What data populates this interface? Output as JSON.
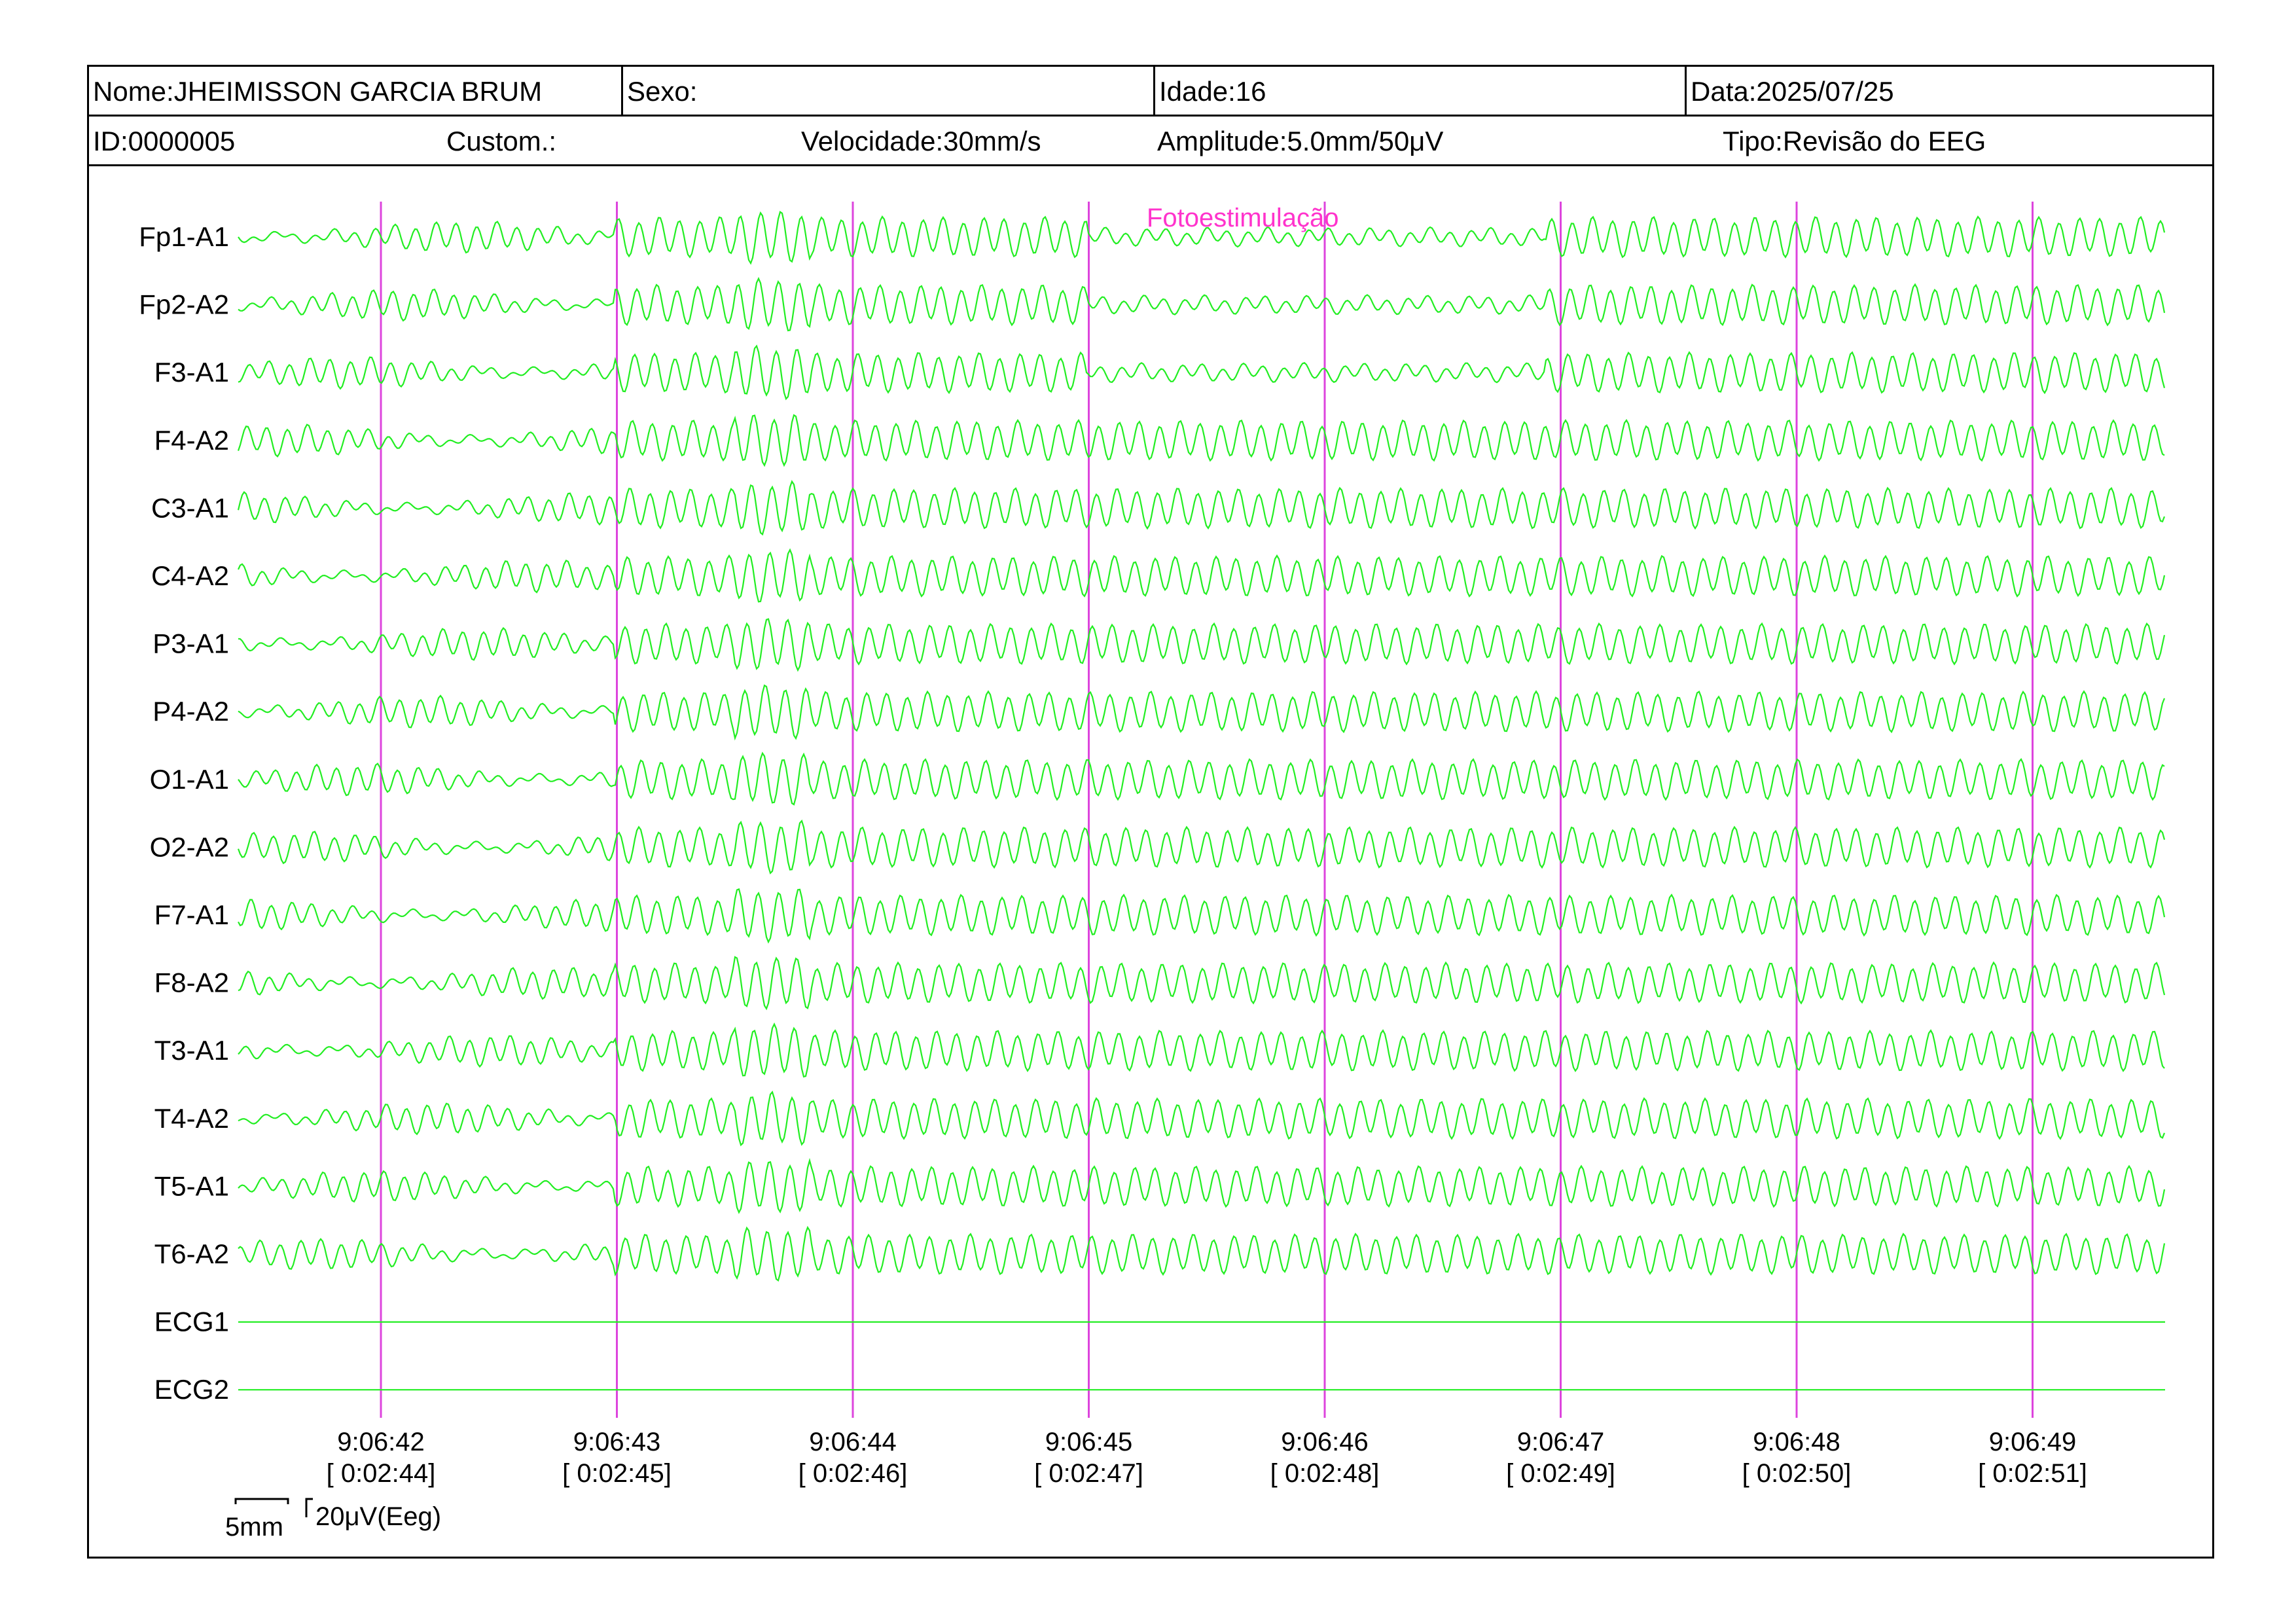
{
  "header": {
    "nome": "Nome:JHEIMISSON GARCIA BRUM",
    "sexo": "Sexo:",
    "idade": "Idade:16",
    "data": "Data:2025/07/25",
    "id": "ID:0000005",
    "custom": "Custom.:",
    "velocidade": "Velocidade:30mm/s",
    "amplitude": "Amplitude:5.0mm/50μV",
    "tipo": "Tipo:Revisão do EEG"
  },
  "event": {
    "label": "Fotoestimulação",
    "color": "#ff33cc"
  },
  "channels": [
    "Fp1-A1",
    "Fp2-A2",
    "F3-A1",
    "F4-A2",
    "C3-A1",
    "C4-A2",
    "P3-A1",
    "P4-A2",
    "O1-A1",
    "O2-A2",
    "F7-A1",
    "F8-A2",
    "T3-A1",
    "T4-A2",
    "T5-A1",
    "T6-A2",
    "ECG1",
    "ECG2"
  ],
  "time_marks": [
    {
      "clock": "9:06:42",
      "elapsed": "[ 0:02:44]"
    },
    {
      "clock": "9:06:43",
      "elapsed": "[ 0:02:45]"
    },
    {
      "clock": "9:06:44",
      "elapsed": "[ 0:02:46]"
    },
    {
      "clock": "9:06:45",
      "elapsed": "[ 0:02:47]"
    },
    {
      "clock": "9:06:46",
      "elapsed": "[ 0:02:48]"
    },
    {
      "clock": "9:06:47",
      "elapsed": "[ 0:02:49]"
    },
    {
      "clock": "9:06:48",
      "elapsed": "[ 0:02:50]"
    },
    {
      "clock": "9:06:49",
      "elapsed": "[ 0:02:51]"
    }
  ],
  "scale": {
    "time": "5mm",
    "amplitude": "20μV(Eeg)"
  },
  "colors": {
    "trace": "#22ee22",
    "marker": "#dd44dd",
    "event_text": "#ff33cc"
  }
}
